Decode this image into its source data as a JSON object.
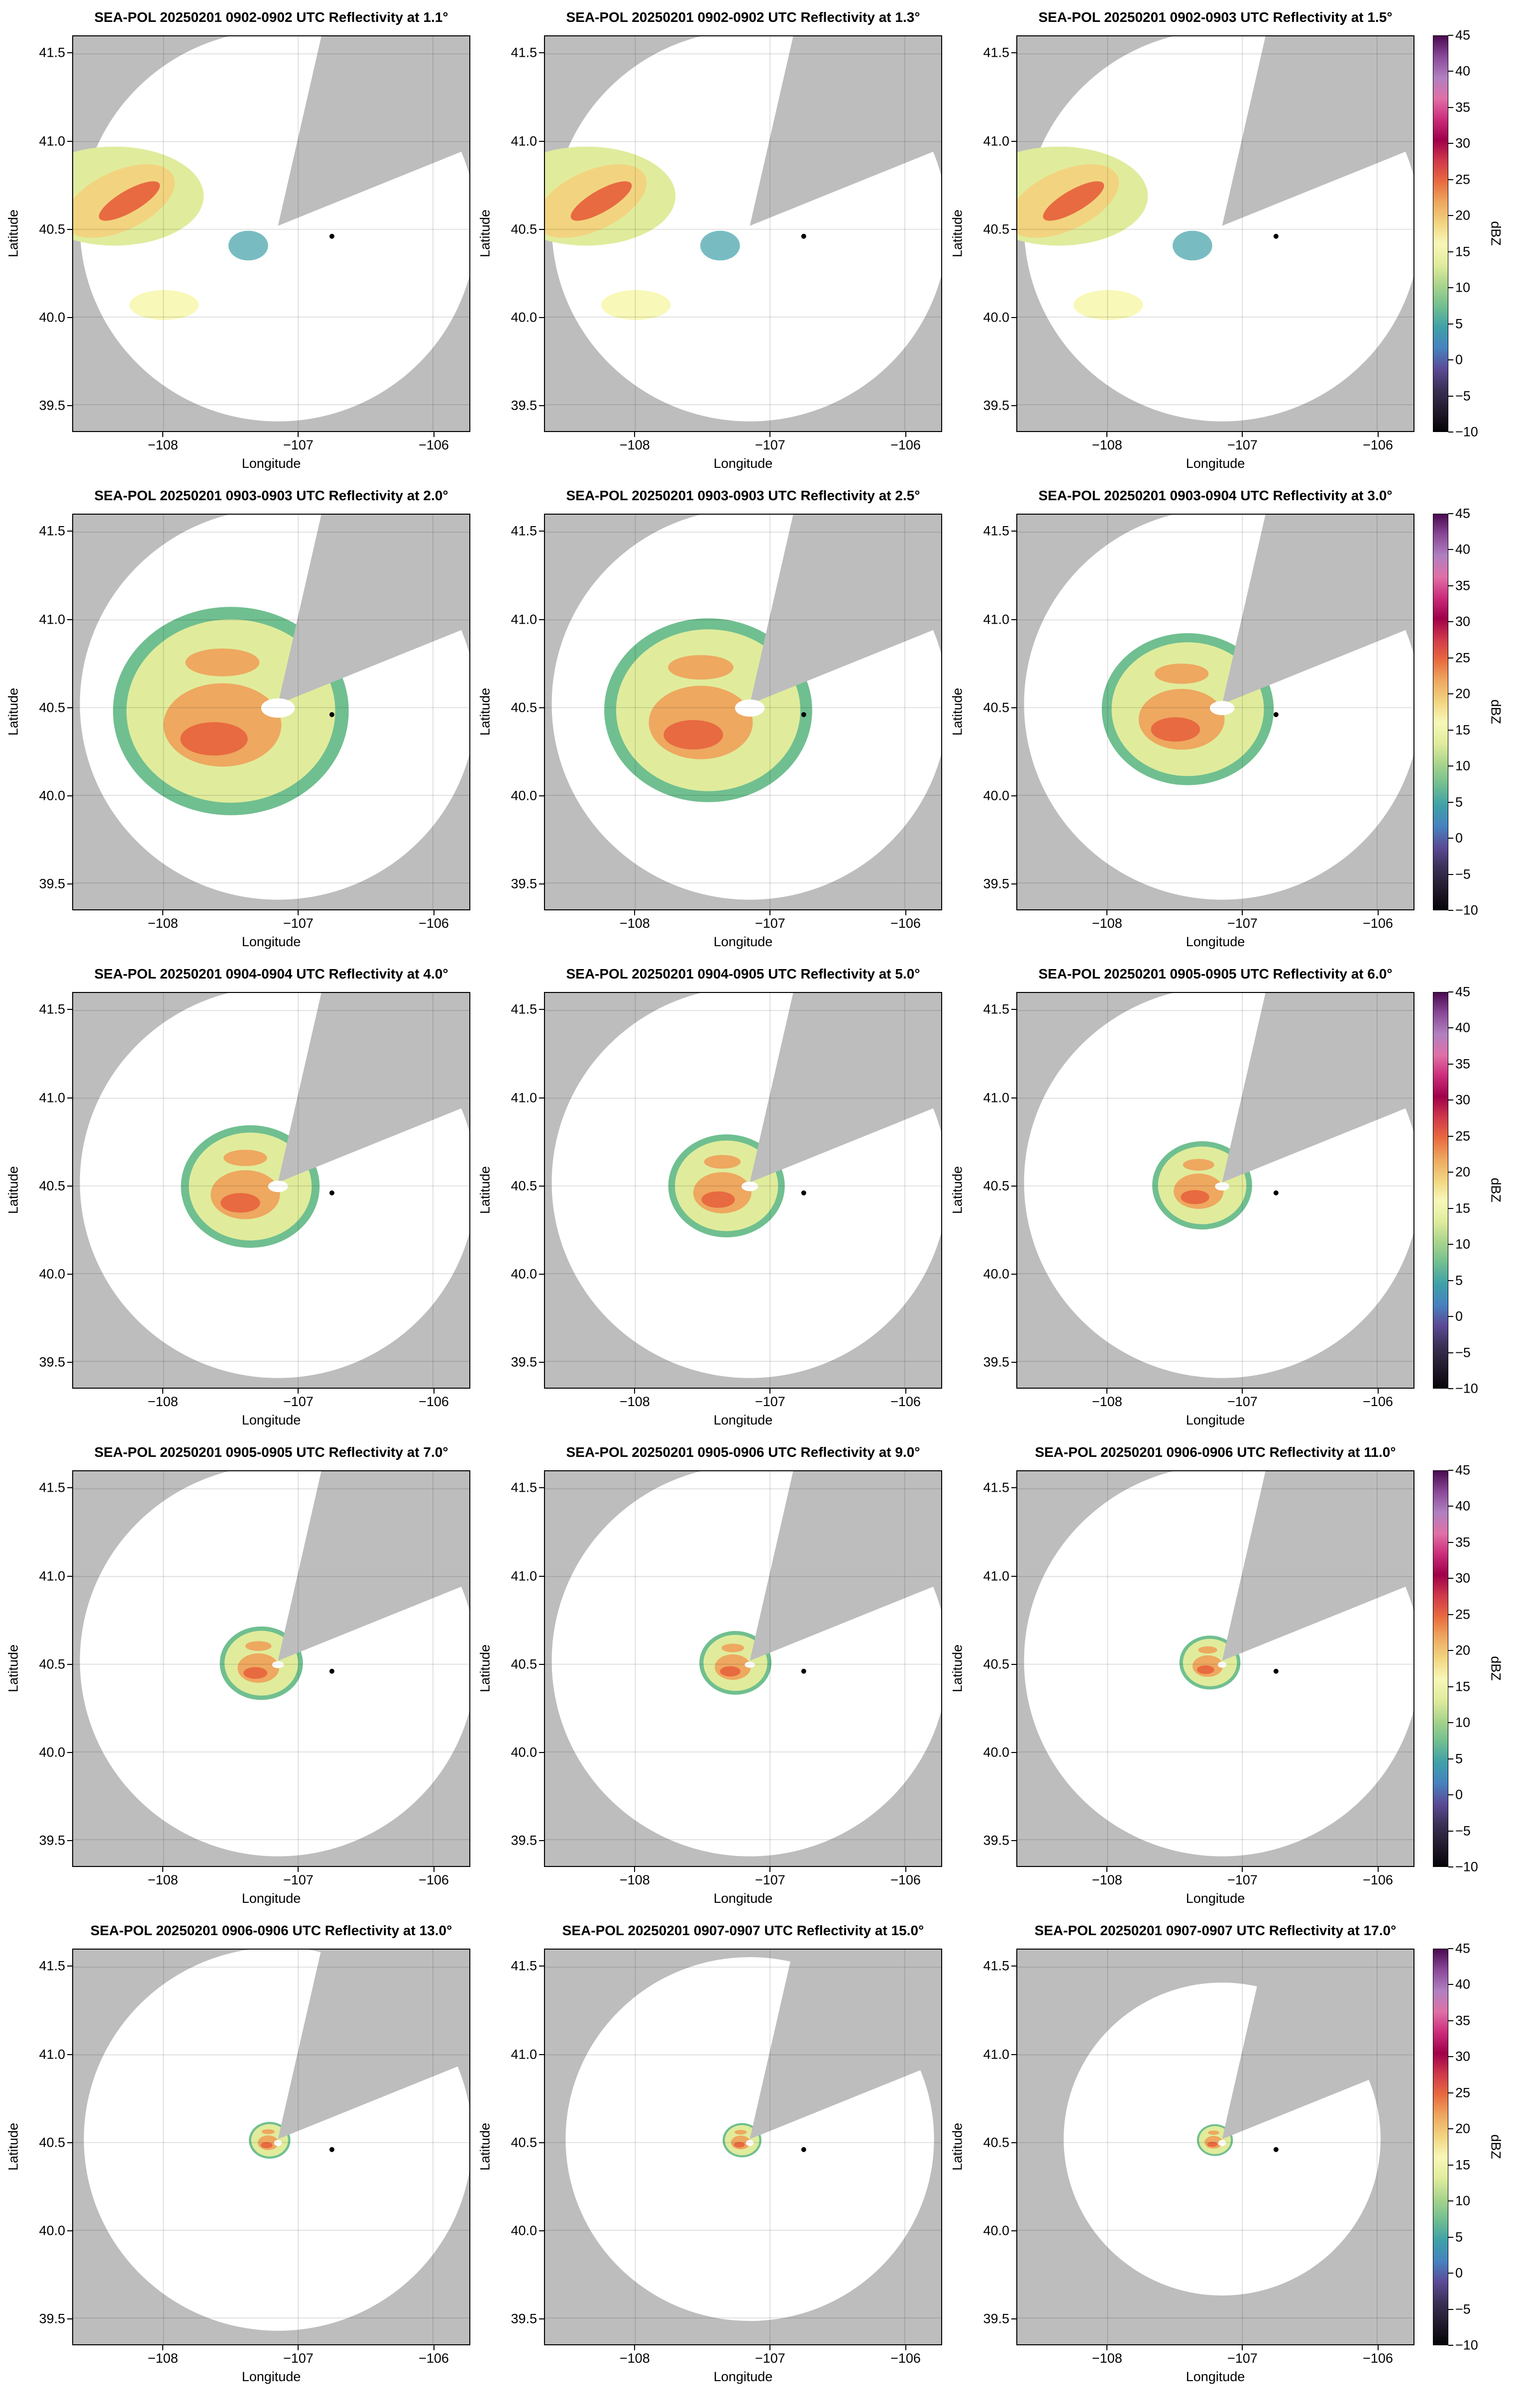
{
  "panels": [
    {
      "title": "SEA-POL 20250201 0902-0902 UTC Reflectivity at 1.1°"
    },
    {
      "title": "SEA-POL 20250201 0902-0902 UTC Reflectivity at 1.3°"
    },
    {
      "title": "SEA-POL 20250201 0902-0903 UTC Reflectivity at 1.5°"
    },
    {
      "title": "SEA-POL 20250201 0903-0903 UTC Reflectivity at 2.0°"
    },
    {
      "title": "SEA-POL 20250201 0903-0903 UTC Reflectivity at 2.5°"
    },
    {
      "title": "SEA-POL 20250201 0903-0904 UTC Reflectivity at 3.0°"
    },
    {
      "title": "SEA-POL 20250201 0904-0904 UTC Reflectivity at 4.0°"
    },
    {
      "title": "SEA-POL 20250201 0904-0905 UTC Reflectivity at 5.0°"
    },
    {
      "title": "SEA-POL 20250201 0905-0905 UTC Reflectivity at 6.0°"
    },
    {
      "title": "SEA-POL 20250201 0905-0905 UTC Reflectivity at 7.0°"
    },
    {
      "title": "SEA-POL 20250201 0905-0906 UTC Reflectivity at 9.0°"
    },
    {
      "title": "SEA-POL 20250201 0906-0906 UTC Reflectivity at 11.0°"
    },
    {
      "title": "SEA-POL 20250201 0906-0906 UTC Reflectivity at 13.0°"
    },
    {
      "title": "SEA-POL 20250201 0907-0907 UTC Reflectivity at 15.0°"
    },
    {
      "title": "SEA-POL 20250201 0907-0907 UTC Reflectivity at 17.0°"
    }
  ],
  "chart_data": {
    "type": "heatmap",
    "xlabel": "Longitude",
    "ylabel": "Latitude",
    "xlim": [
      -108.67,
      -105.73
    ],
    "ylim": [
      39.35,
      41.6
    ],
    "xticks": [
      {
        "v": -108,
        "label": "−108"
      },
      {
        "v": -107,
        "label": "−107"
      },
      {
        "v": -106,
        "label": "−106"
      }
    ],
    "yticks": [
      {
        "v": 41.5,
        "label": "41.5"
      },
      {
        "v": 41.0,
        "label": "41.0"
      },
      {
        "v": 40.5,
        "label": "40.5"
      },
      {
        "v": 40.0,
        "label": "40.0"
      },
      {
        "v": 39.5,
        "label": "39.5"
      }
    ],
    "radar_location": [
      -107.15,
      40.52
    ],
    "marker_location": [
      -106.75,
      40.46
    ],
    "colorbar": {
      "label": "dBZ",
      "range": [
        -10,
        45
      ],
      "ticks": [
        {
          "v": 45,
          "label": "45"
        },
        {
          "v": 40,
          "label": "40"
        },
        {
          "v": 35,
          "label": "35"
        },
        {
          "v": 30,
          "label": "30"
        },
        {
          "v": 25,
          "label": "25"
        },
        {
          "v": 20,
          "label": "20"
        },
        {
          "v": 15,
          "label": "15"
        },
        {
          "v": 10,
          "label": "10"
        },
        {
          "v": 5,
          "label": "5"
        },
        {
          "v": 0,
          "label": "0"
        },
        {
          "v": -5,
          "label": "−5"
        },
        {
          "v": -10,
          "label": "−10"
        }
      ],
      "colors": [
        "#050308",
        "#221a2c",
        "#3a2f55",
        "#5b4a95",
        "#4682c0",
        "#3fa0a8",
        "#70bf90",
        "#a8d48c",
        "#e0ec9c",
        "#f8f8b8",
        "#f2d480",
        "#eea860",
        "#e86a40",
        "#d0384a",
        "#a0004a",
        "#cc2d7a",
        "#e070a8",
        "#b080c0",
        "#8a4898",
        "#4a0a50"
      ]
    }
  },
  "colors": {
    "background": "#bdbdbd",
    "coverage": "#ffffff",
    "grid": "#d6d6d6"
  }
}
